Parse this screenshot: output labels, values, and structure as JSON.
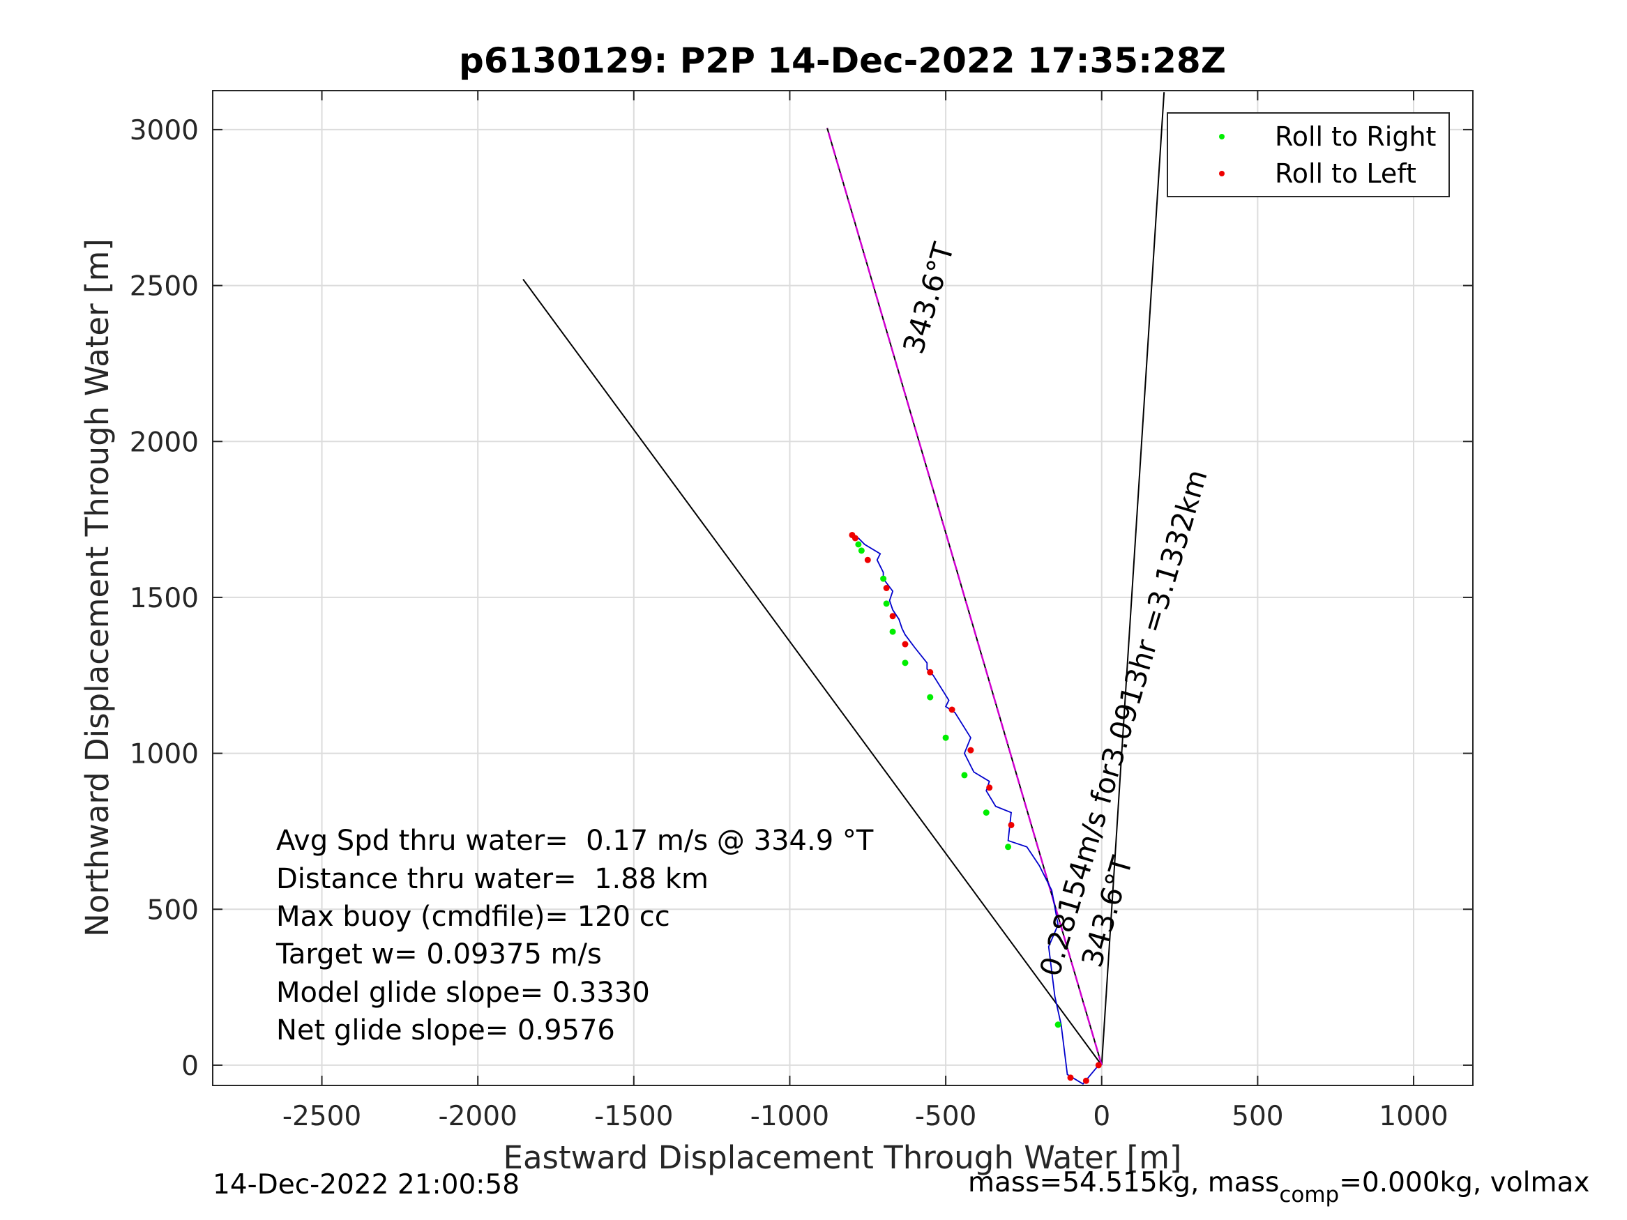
{
  "chart_data": {
    "type": "scatter",
    "title": "p6130129: P2P 14-Dec-2022 17:35:28Z",
    "xlabel": "Eastward Displacement Through Water [m]",
    "ylabel": "Northward Displacement Through Water [m]",
    "xlim": [
      -2850,
      1190
    ],
    "ylim": [
      -65,
      3125
    ],
    "xticks": [
      -2500,
      -2000,
      -1500,
      -1000,
      -500,
      0,
      500,
      1000
    ],
    "yticks": [
      0,
      500,
      1000,
      1500,
      2000,
      2500,
      3000
    ],
    "grid": true,
    "legend_position": "top-right",
    "legend": [
      {
        "label": "Roll to Right",
        "color": "#00ee00"
      },
      {
        "label": "Roll to Left",
        "color": "#ee0000"
      }
    ],
    "colors": {
      "track": "#0000cc",
      "heading_line": "#d000d0",
      "guide_line": "#000000"
    },
    "lines": [
      {
        "kind": "guide",
        "x": [
          0,
          -1855
        ],
        "y": [
          0,
          2520
        ]
      },
      {
        "kind": "guide",
        "x": [
          0,
          200
        ],
        "y": [
          0,
          3120
        ]
      },
      {
        "kind": "guide",
        "x": [
          0,
          -880
        ],
        "y": [
          0,
          3005
        ]
      },
      {
        "kind": "heading",
        "x": [
          0,
          -880
        ],
        "y": [
          0,
          3005
        ]
      }
    ],
    "track": {
      "x": [
        -10,
        -60,
        -110,
        -130,
        -150,
        -170,
        -140,
        -160,
        -200,
        -240,
        -300,
        -290,
        -340,
        -370,
        -360,
        -410,
        -440,
        -420,
        -470,
        -500,
        -490,
        -540,
        -560,
        -560,
        -600,
        -630,
        -640,
        -650,
        -670,
        -680,
        -670,
        -700,
        -700,
        -720,
        -710,
        -760,
        -780,
        -800
      ],
      "y": [
        0,
        -60,
        -30,
        130,
        220,
        380,
        450,
        560,
        640,
        700,
        720,
        810,
        830,
        880,
        910,
        940,
        1000,
        1050,
        1130,
        1150,
        1170,
        1250,
        1270,
        1290,
        1340,
        1380,
        1400,
        1430,
        1460,
        1490,
        1520,
        1560,
        1580,
        1620,
        1640,
        1670,
        1690,
        1700
      ]
    },
    "roll_right": {
      "x": [
        -140,
        -300,
        -370,
        -440,
        -500,
        -550,
        -630,
        -670,
        -690,
        -700,
        -770,
        -780
      ],
      "y": [
        130,
        700,
        810,
        930,
        1050,
        1180,
        1290,
        1390,
        1480,
        1560,
        1650,
        1670
      ]
    },
    "roll_left": {
      "x": [
        -10,
        -50,
        -100,
        -290,
        -360,
        -420,
        -480,
        -550,
        -630,
        -670,
        -690,
        -750,
        -790,
        -800
      ],
      "y": [
        0,
        -50,
        -40,
        770,
        890,
        1010,
        1140,
        1260,
        1350,
        1440,
        1530,
        1620,
        1690,
        1700
      ]
    },
    "heading_labels": [
      "343.6°T",
      "343.6°T"
    ],
    "speed_label": "0.28154m/s for3.0913hr =3.1332km",
    "stats": [
      "Avg Spd thru water=  0.17 m/s @ 334.9 °T",
      "Distance thru water=  1.88 km",
      "Max buoy (cmdfile)= 120 cc",
      "Target w= 0.09375 m/s",
      "Model glide slope= 0.3330",
      "Net glide slope= 0.9576"
    ]
  },
  "footer": {
    "timestamp": "14-Dec-2022 21:00:58",
    "mass_prefix": "mass=54.515kg, mass",
    "mass_sub": "comp",
    "mass_suffix": "=0.000kg, volmax"
  }
}
